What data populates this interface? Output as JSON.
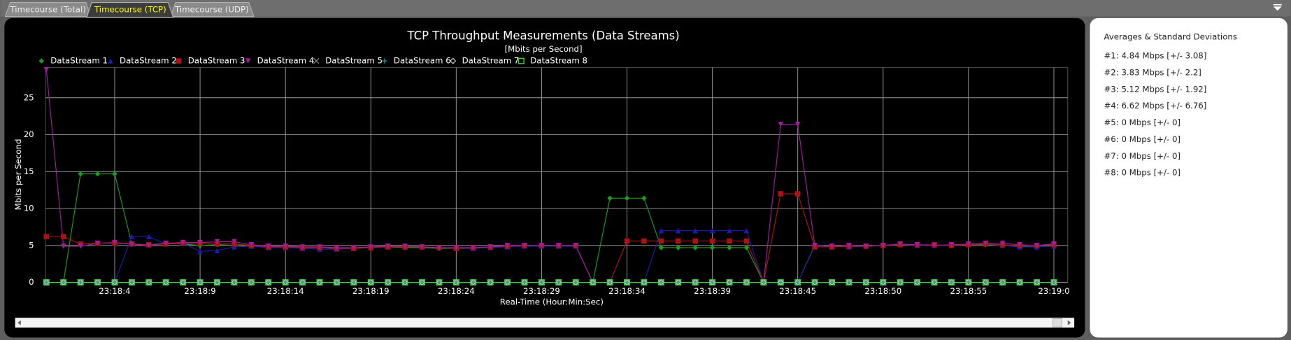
{
  "tabs": [
    "Timecourse (Total)",
    "Timecourse (TCP)",
    "Timecourse (UDP)"
  ],
  "stats": {
    "title": "Averages & Standard Deviations",
    "lines": [
      "#1: 4.84 Mbps [+/-  3.08]",
      "#2: 3.83 Mbps [+/-  2.2]",
      "#3: 5.12 Mbps [+/-  1.92]",
      "#4: 6.62 Mbps [+/-  6.76]",
      "#5: 0 Mbps [+/-  0]",
      "#6: 0 Mbps [+/-  0]",
      "#7: 0 Mbps [+/-  0]",
      "#8: 0 Mbps [+/-  0]"
    ]
  },
  "chart_data": {
    "type": "line",
    "title": "TCP Throughput Measurements (Data Streams)",
    "subtitle": "[Mbits per Second]",
    "y_label": "Mbits per Second",
    "x_label": "Real-Time (Hour:Min:Sec)",
    "ylim": [
      0,
      29.1
    ],
    "yticks": [
      0,
      5,
      10,
      15,
      20,
      25
    ],
    "grid": true,
    "categories": [
      null,
      null,
      null,
      null,
      "23:18:4",
      null,
      null,
      null,
      null,
      "23:18:9",
      null,
      null,
      null,
      null,
      "23:18:14",
      null,
      null,
      null,
      null,
      "23:18:19",
      null,
      null,
      null,
      null,
      "23:18:24",
      null,
      null,
      null,
      null,
      "23:18:29",
      null,
      null,
      null,
      null,
      "23:18:34",
      null,
      null,
      null,
      null,
      "23:18:39",
      null,
      null,
      null,
      null,
      "23:18:45",
      null,
      null,
      null,
      null,
      "23:18:50",
      null,
      null,
      null,
      null,
      "23:18:55",
      null,
      null,
      null,
      null,
      "23:19:0"
    ],
    "series": [
      {
        "name": "DataStream 1",
        "color": "#1f9a1f",
        "marker": "diamond",
        "values": [
          0,
          0,
          14.7,
          14.7,
          14.7,
          5.2,
          5.1,
          5.3,
          5.2,
          5.0,
          5.1,
          5.0,
          4.9,
          4.8,
          4.8,
          4.7,
          4.7,
          4.6,
          4.6,
          4.8,
          4.8,
          4.7,
          4.7,
          4.6,
          4.6,
          4.6,
          4.8,
          4.9,
          5.0,
          5.0,
          5.0,
          5.0,
          0,
          11.4,
          11.4,
          11.4,
          4.7,
          4.7,
          4.7,
          4.7,
          4.7,
          4.7,
          0,
          0,
          0,
          5.0,
          4.9,
          4.9,
          4.9,
          5.0,
          5.1,
          5.0,
          5.1,
          5.0,
          5.2,
          5.1,
          5.0,
          4.9,
          4.8,
          5.0
        ]
      },
      {
        "name": "DataStream 2",
        "color": "#1c1ca8",
        "marker": "triangle",
        "values": [
          0,
          0,
          0,
          0,
          0,
          6.2,
          6.2,
          5.2,
          5.3,
          4.2,
          4.3,
          4.8,
          4.9,
          4.7,
          4.7,
          4.6,
          4.5,
          4.5,
          4.6,
          4.7,
          4.8,
          4.8,
          4.8,
          4.7,
          4.6,
          4.6,
          4.7,
          4.8,
          4.9,
          4.9,
          4.9,
          4.9,
          0,
          0,
          0,
          0,
          7.0,
          7.0,
          7.0,
          7.0,
          7.0,
          7.0,
          0,
          0,
          0,
          4.9,
          4.9,
          4.8,
          4.9,
          5.0,
          5.1,
          5.0,
          5.0,
          5.0,
          5.2,
          5.2,
          5.0,
          4.8,
          4.8,
          4.9
        ]
      },
      {
        "name": "DataStream 3",
        "color": "#a81414",
        "marker": "square",
        "values": [
          6.2,
          6.2,
          5.2,
          5.3,
          5.3,
          5.2,
          5.1,
          5.2,
          5.3,
          5.3,
          5.2,
          5.2,
          5.0,
          4.8,
          4.8,
          4.7,
          4.7,
          4.6,
          4.6,
          4.7,
          4.8,
          4.8,
          4.8,
          4.7,
          4.6,
          4.7,
          4.8,
          4.9,
          5.0,
          5.0,
          5.0,
          5.0,
          0,
          0,
          5.6,
          5.6,
          5.6,
          5.6,
          5.6,
          5.6,
          5.6,
          5.6,
          0,
          12.0,
          12.0,
          4.8,
          4.8,
          4.9,
          4.9,
          5.0,
          5.1,
          5.1,
          5.1,
          5.0,
          5.1,
          5.2,
          5.1,
          5.0,
          5.0,
          5.1
        ]
      },
      {
        "name": "DataStream 4",
        "color": "#9a1f9a",
        "marker": "triangle-down",
        "values": [
          28.8,
          4.9,
          4.9,
          5.3,
          5.4,
          5.2,
          5.0,
          5.3,
          5.4,
          5.4,
          5.5,
          5.5,
          5.1,
          4.9,
          4.9,
          4.8,
          4.8,
          4.7,
          4.7,
          4.8,
          4.9,
          4.9,
          4.8,
          4.7,
          4.7,
          4.7,
          4.8,
          5.0,
          5.0,
          5.0,
          5.0,
          5.0,
          0,
          0,
          0,
          0,
          0,
          0,
          0,
          0,
          0,
          0,
          0,
          21.4,
          21.4,
          5.0,
          4.9,
          5.0,
          4.9,
          5.0,
          5.2,
          5.1,
          5.0,
          5.1,
          5.2,
          5.3,
          5.3,
          5.1,
          5.0,
          5.2
        ]
      },
      {
        "name": "DataStream 5",
        "color": "#8c8c8c",
        "marker": "cross",
        "values": [
          0,
          0,
          0,
          0,
          0,
          0,
          0,
          0,
          0,
          0,
          0,
          0,
          0,
          0,
          0,
          0,
          0,
          0,
          0,
          0,
          0,
          0,
          0,
          0,
          0,
          0,
          0,
          0,
          0,
          0,
          0,
          0,
          0,
          0,
          0,
          0,
          0,
          0,
          0,
          0,
          0,
          0,
          0,
          0,
          0,
          0,
          0,
          0,
          0,
          0,
          0,
          0,
          0,
          0,
          0,
          0,
          0,
          0,
          0,
          0
        ]
      },
      {
        "name": "DataStream 6",
        "color": "#3aa0a0",
        "marker": "plus",
        "values": [
          0,
          0,
          0,
          0,
          0,
          0,
          0,
          0,
          0,
          0,
          0,
          0,
          0,
          0,
          0,
          0,
          0,
          0,
          0,
          0,
          0,
          0,
          0,
          0,
          0,
          0,
          0,
          0,
          0,
          0,
          0,
          0,
          0,
          0,
          0,
          0,
          0,
          0,
          0,
          0,
          0,
          0,
          0,
          0,
          0,
          0,
          0,
          0,
          0,
          0,
          0,
          0,
          0,
          0,
          0,
          0,
          0,
          0,
          0,
          0
        ]
      },
      {
        "name": "DataStream 7",
        "color": "#cfcfcf",
        "marker": "diamond-open",
        "values": [
          0,
          0,
          0,
          0,
          0,
          0,
          0,
          0,
          0,
          0,
          0,
          0,
          0,
          0,
          0,
          0,
          0,
          0,
          0,
          0,
          0,
          0,
          0,
          0,
          0,
          0,
          0,
          0,
          0,
          0,
          0,
          0,
          0,
          0,
          0,
          0,
          0,
          0,
          0,
          0,
          0,
          0,
          0,
          0,
          0,
          0,
          0,
          0,
          0,
          0,
          0,
          0,
          0,
          0,
          0,
          0,
          0,
          0,
          0,
          0
        ]
      },
      {
        "name": "DataStream 8",
        "color": "#3fd23f",
        "marker": "square-open",
        "values": [
          0,
          0,
          0,
          0,
          0,
          0,
          0,
          0,
          0,
          0,
          0,
          0,
          0,
          0,
          0,
          0,
          0,
          0,
          0,
          0,
          0,
          0,
          0,
          0,
          0,
          0,
          0,
          0,
          0,
          0,
          0,
          0,
          0,
          0,
          0,
          0,
          0,
          0,
          0,
          0,
          0,
          0,
          0,
          0,
          0,
          0,
          0,
          0,
          0,
          0,
          0,
          0,
          0,
          0,
          0,
          0,
          0,
          0,
          0,
          0
        ]
      }
    ]
  }
}
